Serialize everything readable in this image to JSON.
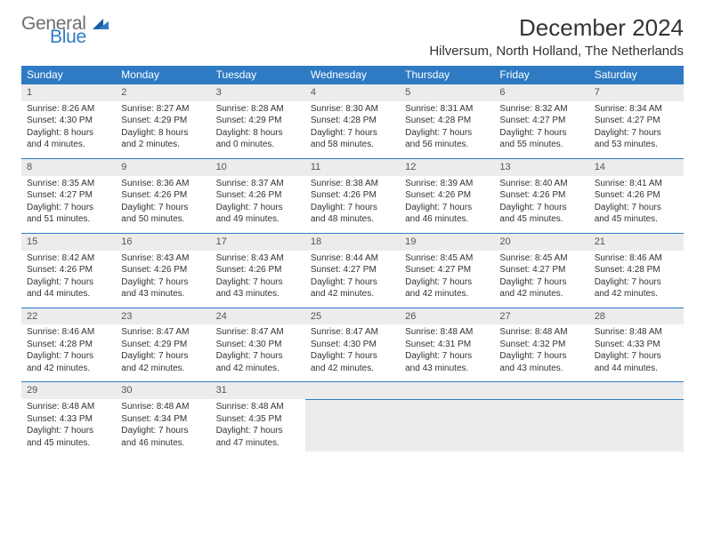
{
  "logo": {
    "g": "General",
    "b": "Blue",
    "tri_color": "#2f7bc4"
  },
  "header": {
    "title": "December 2024",
    "location": "Hilversum, North Holland, The Netherlands"
  },
  "table": {
    "header_bg": "#2e7bc4",
    "header_fg": "#ffffff",
    "cell_num_bg": "#ececec",
    "border_color": "#2e7bc4",
    "days": [
      "Sunday",
      "Monday",
      "Tuesday",
      "Wednesday",
      "Thursday",
      "Friday",
      "Saturday"
    ],
    "weeks": [
      [
        {
          "n": "1",
          "sr": "8:26 AM",
          "ss": "4:30 PM",
          "dl": "8 hours and 4 minutes."
        },
        {
          "n": "2",
          "sr": "8:27 AM",
          "ss": "4:29 PM",
          "dl": "8 hours and 2 minutes."
        },
        {
          "n": "3",
          "sr": "8:28 AM",
          "ss": "4:29 PM",
          "dl": "8 hours and 0 minutes."
        },
        {
          "n": "4",
          "sr": "8:30 AM",
          "ss": "4:28 PM",
          "dl": "7 hours and 58 minutes."
        },
        {
          "n": "5",
          "sr": "8:31 AM",
          "ss": "4:28 PM",
          "dl": "7 hours and 56 minutes."
        },
        {
          "n": "6",
          "sr": "8:32 AM",
          "ss": "4:27 PM",
          "dl": "7 hours and 55 minutes."
        },
        {
          "n": "7",
          "sr": "8:34 AM",
          "ss": "4:27 PM",
          "dl": "7 hours and 53 minutes."
        }
      ],
      [
        {
          "n": "8",
          "sr": "8:35 AM",
          "ss": "4:27 PM",
          "dl": "7 hours and 51 minutes."
        },
        {
          "n": "9",
          "sr": "8:36 AM",
          "ss": "4:26 PM",
          "dl": "7 hours and 50 minutes."
        },
        {
          "n": "10",
          "sr": "8:37 AM",
          "ss": "4:26 PM",
          "dl": "7 hours and 49 minutes."
        },
        {
          "n": "11",
          "sr": "8:38 AM",
          "ss": "4:26 PM",
          "dl": "7 hours and 48 minutes."
        },
        {
          "n": "12",
          "sr": "8:39 AM",
          "ss": "4:26 PM",
          "dl": "7 hours and 46 minutes."
        },
        {
          "n": "13",
          "sr": "8:40 AM",
          "ss": "4:26 PM",
          "dl": "7 hours and 45 minutes."
        },
        {
          "n": "14",
          "sr": "8:41 AM",
          "ss": "4:26 PM",
          "dl": "7 hours and 45 minutes."
        }
      ],
      [
        {
          "n": "15",
          "sr": "8:42 AM",
          "ss": "4:26 PM",
          "dl": "7 hours and 44 minutes."
        },
        {
          "n": "16",
          "sr": "8:43 AM",
          "ss": "4:26 PM",
          "dl": "7 hours and 43 minutes."
        },
        {
          "n": "17",
          "sr": "8:43 AM",
          "ss": "4:26 PM",
          "dl": "7 hours and 43 minutes."
        },
        {
          "n": "18",
          "sr": "8:44 AM",
          "ss": "4:27 PM",
          "dl": "7 hours and 42 minutes."
        },
        {
          "n": "19",
          "sr": "8:45 AM",
          "ss": "4:27 PM",
          "dl": "7 hours and 42 minutes."
        },
        {
          "n": "20",
          "sr": "8:45 AM",
          "ss": "4:27 PM",
          "dl": "7 hours and 42 minutes."
        },
        {
          "n": "21",
          "sr": "8:46 AM",
          "ss": "4:28 PM",
          "dl": "7 hours and 42 minutes."
        }
      ],
      [
        {
          "n": "22",
          "sr": "8:46 AM",
          "ss": "4:28 PM",
          "dl": "7 hours and 42 minutes."
        },
        {
          "n": "23",
          "sr": "8:47 AM",
          "ss": "4:29 PM",
          "dl": "7 hours and 42 minutes."
        },
        {
          "n": "24",
          "sr": "8:47 AM",
          "ss": "4:30 PM",
          "dl": "7 hours and 42 minutes."
        },
        {
          "n": "25",
          "sr": "8:47 AM",
          "ss": "4:30 PM",
          "dl": "7 hours and 42 minutes."
        },
        {
          "n": "26",
          "sr": "8:48 AM",
          "ss": "4:31 PM",
          "dl": "7 hours and 43 minutes."
        },
        {
          "n": "27",
          "sr": "8:48 AM",
          "ss": "4:32 PM",
          "dl": "7 hours and 43 minutes."
        },
        {
          "n": "28",
          "sr": "8:48 AM",
          "ss": "4:33 PM",
          "dl": "7 hours and 44 minutes."
        }
      ],
      [
        {
          "n": "29",
          "sr": "8:48 AM",
          "ss": "4:33 PM",
          "dl": "7 hours and 45 minutes."
        },
        {
          "n": "30",
          "sr": "8:48 AM",
          "ss": "4:34 PM",
          "dl": "7 hours and 46 minutes."
        },
        {
          "n": "31",
          "sr": "8:48 AM",
          "ss": "4:35 PM",
          "dl": "7 hours and 47 minutes."
        },
        {
          "empty": true
        },
        {
          "empty": true
        },
        {
          "empty": true
        },
        {
          "empty": true
        }
      ]
    ],
    "labels": {
      "sunrise": "Sunrise:",
      "sunset": "Sunset:",
      "daylight": "Daylight:"
    }
  }
}
